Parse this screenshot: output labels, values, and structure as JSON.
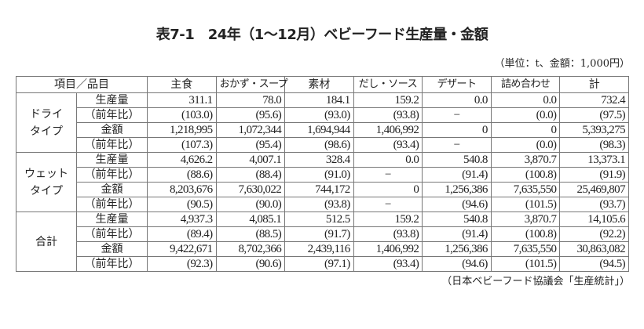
{
  "title": "表7-1　24年（1〜12月）ベビーフード生産量・金額",
  "unit": "（単位：t、金額：1,000円）",
  "source": "（日本ベビーフード協議会「生産統計」）",
  "headers": [
    "項目／品目",
    "主食",
    "おかず・スープ",
    "素材",
    "だし・ソース",
    "デザート",
    "詰め合わせ",
    "計"
  ],
  "groups": [
    {
      "label": "ドライ\nタイプ",
      "rows": [
        {
          "label": "生産量",
          "values": [
            "311.1",
            "78.0",
            "184.1",
            "159.2",
            "0.0",
            "0.0",
            "732.4"
          ]
        },
        {
          "label": "（前年比）",
          "values": [
            "(103.0)",
            "(95.6)",
            "(93.0)",
            "(93.8)",
            "−",
            "(0.0)",
            "(97.5)"
          ]
        },
        {
          "label": "金額",
          "values": [
            "1,218,995",
            "1,072,344",
            "1,694,944",
            "1,406,992",
            "0",
            "0",
            "5,393,275"
          ]
        },
        {
          "label": "（前年比）",
          "values": [
            "(107.3)",
            "(95.4)",
            "(98.6)",
            "(93.4)",
            "−",
            "(0.0)",
            "(98.3)"
          ]
        }
      ]
    },
    {
      "label": "ウェット\nタイプ",
      "rows": [
        {
          "label": "生産量",
          "values": [
            "4,626.2",
            "4,007.1",
            "328.4",
            "0.0",
            "540.8",
            "3,870.7",
            "13,373.1"
          ]
        },
        {
          "label": "（前年比）",
          "values": [
            "(88.6)",
            "(88.4)",
            "(91.0)",
            "−",
            "(91.4)",
            "(100.8)",
            "(91.9)"
          ]
        },
        {
          "label": "金額",
          "values": [
            "8,203,676",
            "7,630,022",
            "744,172",
            "0",
            "1,256,386",
            "7,635,550",
            "25,469,807"
          ]
        },
        {
          "label": "（前年比）",
          "values": [
            "(90.5)",
            "(90.0)",
            "(93.8)",
            "−",
            "(94.6)",
            "(101.5)",
            "(93.7)"
          ]
        }
      ]
    },
    {
      "label": "合計",
      "rows": [
        {
          "label": "生産量",
          "values": [
            "4,937.3",
            "4,085.1",
            "512.5",
            "159.2",
            "540.8",
            "3,870.7",
            "14,105.6"
          ]
        },
        {
          "label": "（前年比）",
          "values": [
            "(89.4)",
            "(88.5)",
            "(91.7)",
            "(93.8)",
            "(91.4)",
            "(100.8)",
            "(92.2)"
          ]
        },
        {
          "label": "金額",
          "values": [
            "9,422,671",
            "8,702,366",
            "2,439,116",
            "1,406,992",
            "1,256,386",
            "7,635,550",
            "30,863,082"
          ]
        },
        {
          "label": "（前年比）",
          "values": [
            "(92.3)",
            "(90.6)",
            "(97.1)",
            "(93.4)",
            "(94.6)",
            "(101.5)",
            "(94.5)"
          ]
        }
      ]
    }
  ]
}
